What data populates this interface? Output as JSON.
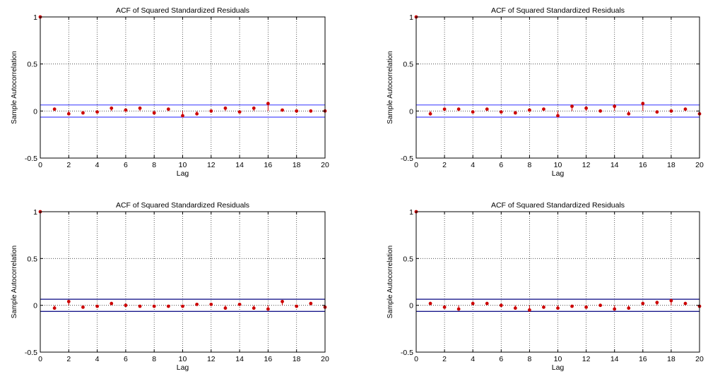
{
  "chart_data": [
    {
      "type": "stem",
      "title": "ACF of Squared Standardized Residuals",
      "xlabel": "Lag",
      "ylabel": "Sample Autocorrelation",
      "xlim": [
        0,
        20
      ],
      "ylim": [
        -0.5,
        1
      ],
      "xticks": [
        0,
        2,
        4,
        6,
        8,
        10,
        12,
        14,
        16,
        18,
        20
      ],
      "yticks": [
        -0.5,
        0,
        0.5,
        1
      ],
      "grid": true,
      "confidence_bounds": [
        -0.065,
        0.065
      ],
      "x": [
        0,
        1,
        2,
        3,
        4,
        5,
        6,
        7,
        8,
        9,
        10,
        11,
        12,
        13,
        14,
        15,
        16,
        17,
        18,
        19,
        20
      ],
      "values": [
        1,
        0.02,
        -0.03,
        -0.02,
        -0.01,
        0.03,
        0.01,
        0.03,
        -0.02,
        0.02,
        -0.05,
        -0.03,
        0.0,
        0.03,
        -0.01,
        0.03,
        0.08,
        0.01,
        0.0,
        0.0,
        0.0
      ],
      "stem_color": "#cc0000",
      "bound_color": "#6a6aff"
    },
    {
      "type": "stem",
      "title": "ACF of Squared Standardized Residuals",
      "xlabel": "Lag",
      "ylabel": "Sample Autocorrelation",
      "xlim": [
        0,
        20
      ],
      "ylim": [
        -0.5,
        1
      ],
      "xticks": [
        0,
        2,
        4,
        6,
        8,
        10,
        12,
        14,
        16,
        18,
        20
      ],
      "yticks": [
        -0.5,
        0,
        0.5,
        1
      ],
      "grid": true,
      "confidence_bounds": [
        -0.065,
        0.065
      ],
      "x": [
        0,
        1,
        2,
        3,
        4,
        5,
        6,
        7,
        8,
        9,
        10,
        11,
        12,
        13,
        14,
        15,
        16,
        17,
        18,
        19,
        20
      ],
      "values": [
        1,
        -0.03,
        0.02,
        0.02,
        -0.01,
        0.02,
        -0.01,
        -0.02,
        0.01,
        0.02,
        -0.05,
        0.05,
        0.03,
        0.0,
        0.05,
        -0.03,
        0.08,
        -0.01,
        0.0,
        0.02,
        -0.03
      ],
      "stem_color": "#cc0000",
      "bound_color": "#6a6aff"
    },
    {
      "type": "stem",
      "title": "ACF of Squared Standardized Residuals",
      "xlabel": "Lag",
      "ylabel": "Sample Autocorrelation",
      "xlim": [
        0,
        20
      ],
      "ylim": [
        -0.5,
        1
      ],
      "xticks": [
        0,
        2,
        4,
        6,
        8,
        10,
        12,
        14,
        16,
        18,
        20
      ],
      "yticks": [
        -0.5,
        0,
        0.5,
        1
      ],
      "grid": true,
      "confidence_bounds": [
        -0.065,
        0.065
      ],
      "x": [
        0,
        1,
        2,
        3,
        4,
        5,
        6,
        7,
        8,
        9,
        10,
        11,
        12,
        13,
        14,
        15,
        16,
        17,
        18,
        19,
        20
      ],
      "values": [
        1,
        -0.03,
        0.04,
        -0.02,
        -0.01,
        0.02,
        0.0,
        -0.01,
        -0.01,
        -0.01,
        -0.01,
        0.01,
        0.01,
        -0.03,
        0.01,
        -0.03,
        -0.04,
        0.04,
        -0.01,
        0.02,
        -0.02
      ],
      "stem_color": "#cc0000",
      "bound_color": "#1a1a8c"
    },
    {
      "type": "stem",
      "title": "ACF of Squared Standardized Residuals",
      "xlabel": "Lag",
      "ylabel": "Sample Autocorrelation",
      "xlim": [
        0,
        20
      ],
      "ylim": [
        -0.5,
        1
      ],
      "xticks": [
        0,
        2,
        4,
        6,
        8,
        10,
        12,
        14,
        16,
        18,
        20
      ],
      "yticks": [
        -0.5,
        0,
        0.5,
        1
      ],
      "grid": true,
      "confidence_bounds": [
        -0.065,
        0.065
      ],
      "x": [
        0,
        1,
        2,
        3,
        4,
        5,
        6,
        7,
        8,
        9,
        10,
        11,
        12,
        13,
        14,
        15,
        16,
        17,
        18,
        19,
        20
      ],
      "values": [
        1,
        0.02,
        -0.02,
        -0.04,
        0.02,
        0.02,
        0.0,
        -0.03,
        -0.05,
        -0.02,
        -0.03,
        -0.01,
        -0.02,
        0.0,
        -0.04,
        -0.03,
        0.02,
        0.03,
        0.05,
        0.02,
        -0.01
      ],
      "stem_color": "#cc0000",
      "bound_color": "#1a1a8c"
    }
  ]
}
